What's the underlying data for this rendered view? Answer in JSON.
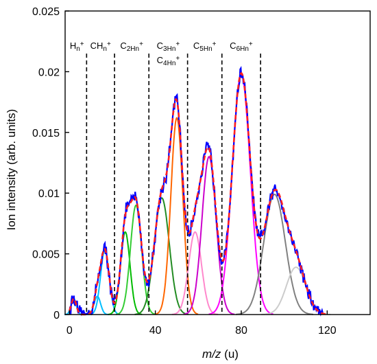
{
  "chart_data": {
    "type": "line",
    "xlabel_italic": "m/z",
    "xlabel_unit": " (u)",
    "ylabel": "Ion intensity (arb. units)",
    "xlim": [
      -2,
      140
    ],
    "ylim": [
      0,
      0.025
    ],
    "x_ticks": [
      0,
      40,
      80,
      120
    ],
    "x_tick_labels": [
      "0",
      "40",
      "80",
      "120"
    ],
    "y_ticks": [
      0,
      0.005,
      0.01,
      0.015,
      0.02,
      0.025
    ],
    "y_tick_labels": [
      "0",
      "0.005",
      "0.01",
      "0.015",
      "0.02",
      "0.025"
    ],
    "region_dividers": [
      8,
      21,
      37,
      55,
      71,
      89
    ],
    "region_labels": [
      {
        "lines": [
          "H_n^+"
        ],
        "x_center": 3.5
      },
      {
        "lines": [
          "CH_n^+"
        ],
        "x_center": 14.5
      },
      {
        "lines": [
          "C_2H_n^+"
        ],
        "x_center": 29
      },
      {
        "lines": [
          "C_3H_n^+",
          "C_4H_n^+"
        ],
        "x_center": 46
      },
      {
        "lines": [
          "C_5H_n^+"
        ],
        "x_center": 63
      },
      {
        "lines": [
          "C_6H_n^+"
        ],
        "x_center": 80
      }
    ],
    "series": [
      {
        "role": "component",
        "color": "#00bfff",
        "amplitude": 0.0053,
        "center": 16.5,
        "sigma": 2.0
      },
      {
        "role": "component",
        "color": "#00bfff",
        "amplitude": 0.0013,
        "center": 2.0,
        "sigma": 1.2
      },
      {
        "role": "component",
        "color": "#00bfff",
        "amplitude": 0.0015,
        "center": 13.0,
        "sigma": 1.5
      },
      {
        "role": "component",
        "color": "#00bb00",
        "amplitude": 0.0068,
        "center": 26.0,
        "sigma": 2.2
      },
      {
        "role": "component",
        "color": "#33cc33",
        "amplitude": 0.009,
        "center": 31.0,
        "sigma": 2.6
      },
      {
        "role": "component",
        "color": "#228b22",
        "amplitude": 0.0096,
        "center": 43.0,
        "sigma": 3.5
      },
      {
        "role": "component",
        "color": "#ff6600",
        "amplitude": 0.0162,
        "center": 50.0,
        "sigma": 2.8
      },
      {
        "role": "component",
        "color": "#ff88cc",
        "amplitude": 0.0068,
        "center": 58.5,
        "sigma": 3.0
      },
      {
        "role": "component",
        "color": "#cc00cc",
        "amplitude": 0.013,
        "center": 65.0,
        "sigma": 3.3
      },
      {
        "role": "component",
        "color": "#ff00ff",
        "amplitude": 0.0198,
        "center": 80.0,
        "sigma": 4.2
      },
      {
        "role": "component",
        "color": "#808080",
        "amplitude": 0.0099,
        "center": 95.5,
        "sigma": 5.0
      },
      {
        "role": "component",
        "color": "#cccccc",
        "amplitude": 0.0039,
        "center": 105.5,
        "sigma": 4.5
      },
      {
        "role": "fit",
        "color": "#ff2020",
        "style": "dashed"
      },
      {
        "role": "measured",
        "color": "#0000ff",
        "style": "solid-noisy"
      }
    ]
  }
}
